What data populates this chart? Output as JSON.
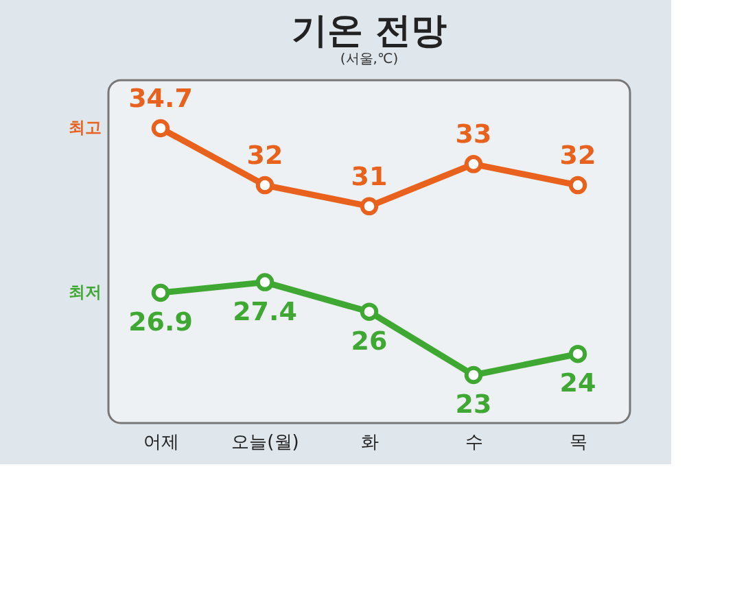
{
  "chart_data": {
    "type": "line",
    "title": "기온 전망",
    "subtitle": "(서울,℃)",
    "categories": [
      "어제",
      "오늘(월)",
      "화",
      "수",
      "목"
    ],
    "series": [
      {
        "name": "최고",
        "color": "#e8621e",
        "values": [
          34.7,
          32,
          31,
          33,
          32
        ]
      },
      {
        "name": "최저",
        "color": "#3fa833",
        "values": [
          26.9,
          27.4,
          26,
          23,
          24
        ]
      }
    ],
    "data_labels": true,
    "marker": "circle",
    "line_style": "solid",
    "grid": false,
    "legend": false
  }
}
